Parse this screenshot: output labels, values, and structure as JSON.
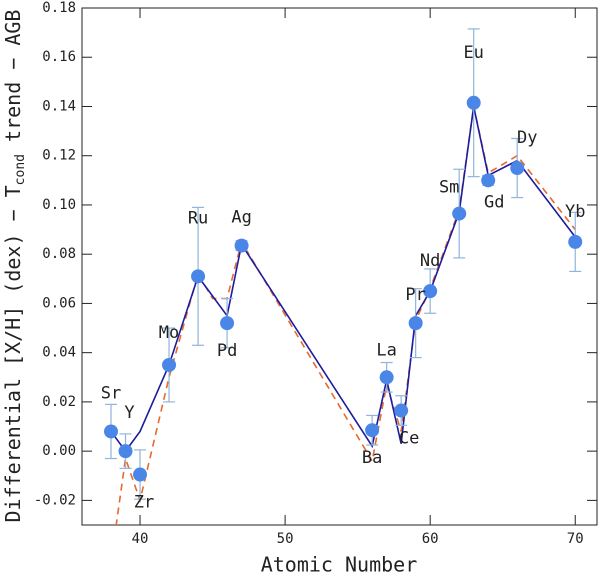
{
  "chart_data": {
    "type": "scatter",
    "xlabel": "Atomic Number",
    "ylabel": "Differential [X/H] (dex) − T",
    "ylabel_sub": "cond",
    "ylabel_end": " trend − AGB",
    "xlim": [
      36,
      71.5
    ],
    "ylim": [
      -0.03,
      0.18
    ],
    "xticks": [
      40,
      50,
      60,
      70
    ],
    "yticks": [
      {
        "value": -0.02,
        "label": "-0.02"
      },
      {
        "value": 0,
        "label": "0.00"
      },
      {
        "value": 0.02,
        "label": "0.02"
      },
      {
        "value": 0.04,
        "label": "0.04"
      },
      {
        "value": 0.06,
        "label": "0.06"
      },
      {
        "value": 0.08,
        "label": "0.08"
      },
      {
        "value": 0.1,
        "label": "0.10"
      },
      {
        "value": 0.12,
        "label": "0.12"
      },
      {
        "value": 0.14,
        "label": "0.14"
      },
      {
        "value": 0.16,
        "label": "0.16"
      },
      {
        "value": 0.18,
        "label": "0.18"
      }
    ],
    "series": [
      {
        "type": "scatter",
        "color": "#4a86e8",
        "error_color": "#90b4dc",
        "labels": [
          "Sr",
          "Y",
          "Zr",
          "Mo",
          "Ru",
          "Pd",
          "Ag",
          "Ba",
          "La",
          "Ce",
          "Pr",
          "Nd",
          "Sm",
          "Eu",
          "Gd",
          "Dy",
          "Yb"
        ],
        "x": [
          38,
          39,
          40,
          42,
          44,
          46,
          47,
          56,
          57,
          58,
          59,
          60,
          62,
          63,
          64,
          66,
          70
        ],
        "values": [
          0.008,
          0.0,
          -0.0095,
          0.035,
          0.071,
          0.052,
          0.0835,
          0.0085,
          0.03,
          0.0165,
          0.052,
          0.065,
          0.0965,
          0.1415,
          0.11,
          0.115,
          0.085
        ],
        "errors": [
          0.011,
          0.007,
          0.01,
          0.015,
          0.028,
          0.01,
          0.002,
          0.006,
          0.006,
          0.006,
          0.014,
          0.009,
          0.018,
          0.03,
          0.002,
          0.012,
          0.012
        ]
      },
      {
        "type": "line",
        "color": "#1c1c9e",
        "x": [
          38,
          39,
          40,
          42,
          44,
          46,
          47,
          56,
          57,
          58,
          59,
          60,
          62,
          63,
          64,
          66,
          70
        ],
        "values": [
          0.008,
          0.0,
          0.008,
          0.035,
          0.071,
          0.055,
          0.084,
          0.002,
          0.029,
          0.003,
          0.055,
          0.065,
          0.097,
          0.14,
          0.112,
          0.118,
          0.087
        ]
      },
      {
        "type": "line",
        "color": "#e8692e",
        "dashed": true,
        "x": [
          38,
          39,
          40,
          42,
          44,
          45,
          46,
          47,
          56,
          57,
          58,
          59,
          60,
          62,
          63,
          64,
          66,
          70
        ],
        "values": [
          -0.045,
          -0.003,
          -0.02,
          0.03,
          0.072,
          0.062,
          0.062,
          0.085,
          -0.004,
          0.027,
          0.008,
          0.053,
          0.066,
          0.098,
          0.14,
          0.113,
          0.12,
          0.09
        ]
      }
    ]
  }
}
